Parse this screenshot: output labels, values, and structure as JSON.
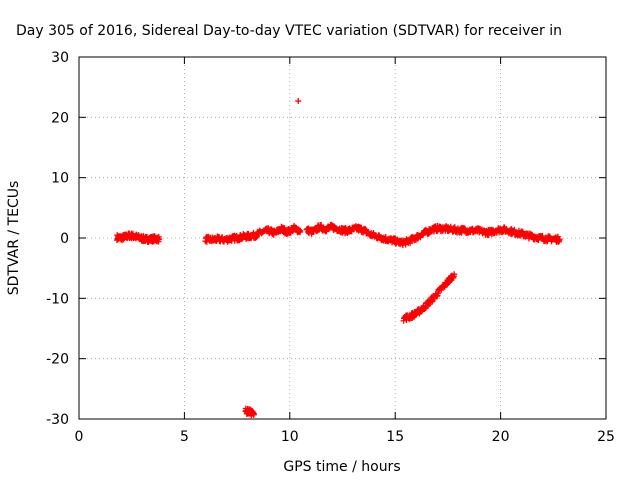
{
  "chart_data": {
    "type": "scatter",
    "title": "Day 305 of 2016, Sidereal Day-to-day VTEC variation (SDTVAR) for receiver in",
    "xlabel": "GPS time / hours",
    "ylabel": "SDTVAR / TECUs",
    "xlim": [
      0,
      25
    ],
    "ylim": [
      -30,
      30
    ],
    "xticks": [
      0,
      5,
      10,
      15,
      20,
      25
    ],
    "yticks": [
      -30,
      -20,
      -10,
      0,
      10,
      20,
      30
    ],
    "grid": true,
    "marker": "+",
    "color": "#ff0000",
    "segments": [
      {
        "x": [
          1.8,
          2.0,
          2.2,
          2.4,
          2.6,
          2.8,
          3.0,
          3.2,
          3.4,
          3.6,
          3.8
        ],
        "y": [
          0.1,
          0.0,
          0.2,
          0.4,
          0.3,
          0.1,
          -0.1,
          -0.2,
          -0.2,
          -0.1,
          -0.2
        ]
      },
      {
        "x": [
          6.0,
          6.3,
          6.6,
          6.9,
          7.2,
          7.5,
          7.8,
          8.1,
          8.4,
          8.7,
          9.0,
          9.3,
          9.6,
          9.9,
          10.2,
          10.5
        ],
        "y": [
          -0.2,
          -0.3,
          -0.2,
          -0.3,
          -0.1,
          0.0,
          0.2,
          0.3,
          0.5,
          1.0,
          1.2,
          0.8,
          1.5,
          1.0,
          1.6,
          1.2
        ]
      },
      {
        "x": [
          10.8,
          11.1,
          11.4,
          11.7,
          12.0,
          12.3,
          12.6,
          12.9,
          13.2,
          13.5,
          13.8,
          14.1,
          14.4,
          14.7,
          15.0,
          15.3,
          15.6
        ],
        "y": [
          1.3,
          1.0,
          1.8,
          1.5,
          1.8,
          1.5,
          1.2,
          1.3,
          1.6,
          1.3,
          0.6,
          0.3,
          0.0,
          -0.3,
          -0.5,
          -0.8,
          -0.6
        ]
      },
      {
        "x": [
          15.6,
          15.9,
          16.2,
          16.5,
          16.8,
          17.1,
          17.4,
          17.7,
          18.0,
          18.3,
          18.6,
          18.9,
          19.2,
          19.5,
          19.8,
          20.1,
          20.4,
          20.7,
          21.0,
          21.3,
          21.6,
          21.9,
          22.2,
          22.5,
          22.8
        ],
        "y": [
          -0.6,
          -0.1,
          0.5,
          1.0,
          1.5,
          1.6,
          1.5,
          1.4,
          1.3,
          1.3,
          1.2,
          1.2,
          1.0,
          0.9,
          1.3,
          1.4,
          1.2,
          0.9,
          0.7,
          0.4,
          0.2,
          0.0,
          -0.1,
          -0.2,
          -0.2
        ]
      },
      {
        "x": [
          15.4,
          15.7,
          16.0,
          16.3,
          16.6,
          16.9,
          17.2,
          17.5,
          17.8
        ],
        "y": [
          -13.3,
          -13.0,
          -12.5,
          -11.7,
          -10.7,
          -9.6,
          -8.4,
          -7.2,
          -6.0
        ]
      },
      {
        "x": [
          7.9,
          8.1,
          8.3
        ],
        "y": [
          -28.7,
          -28.8,
          -29.2
        ]
      },
      {
        "x": [
          10.4
        ],
        "y": [
          22.7
        ]
      }
    ]
  }
}
